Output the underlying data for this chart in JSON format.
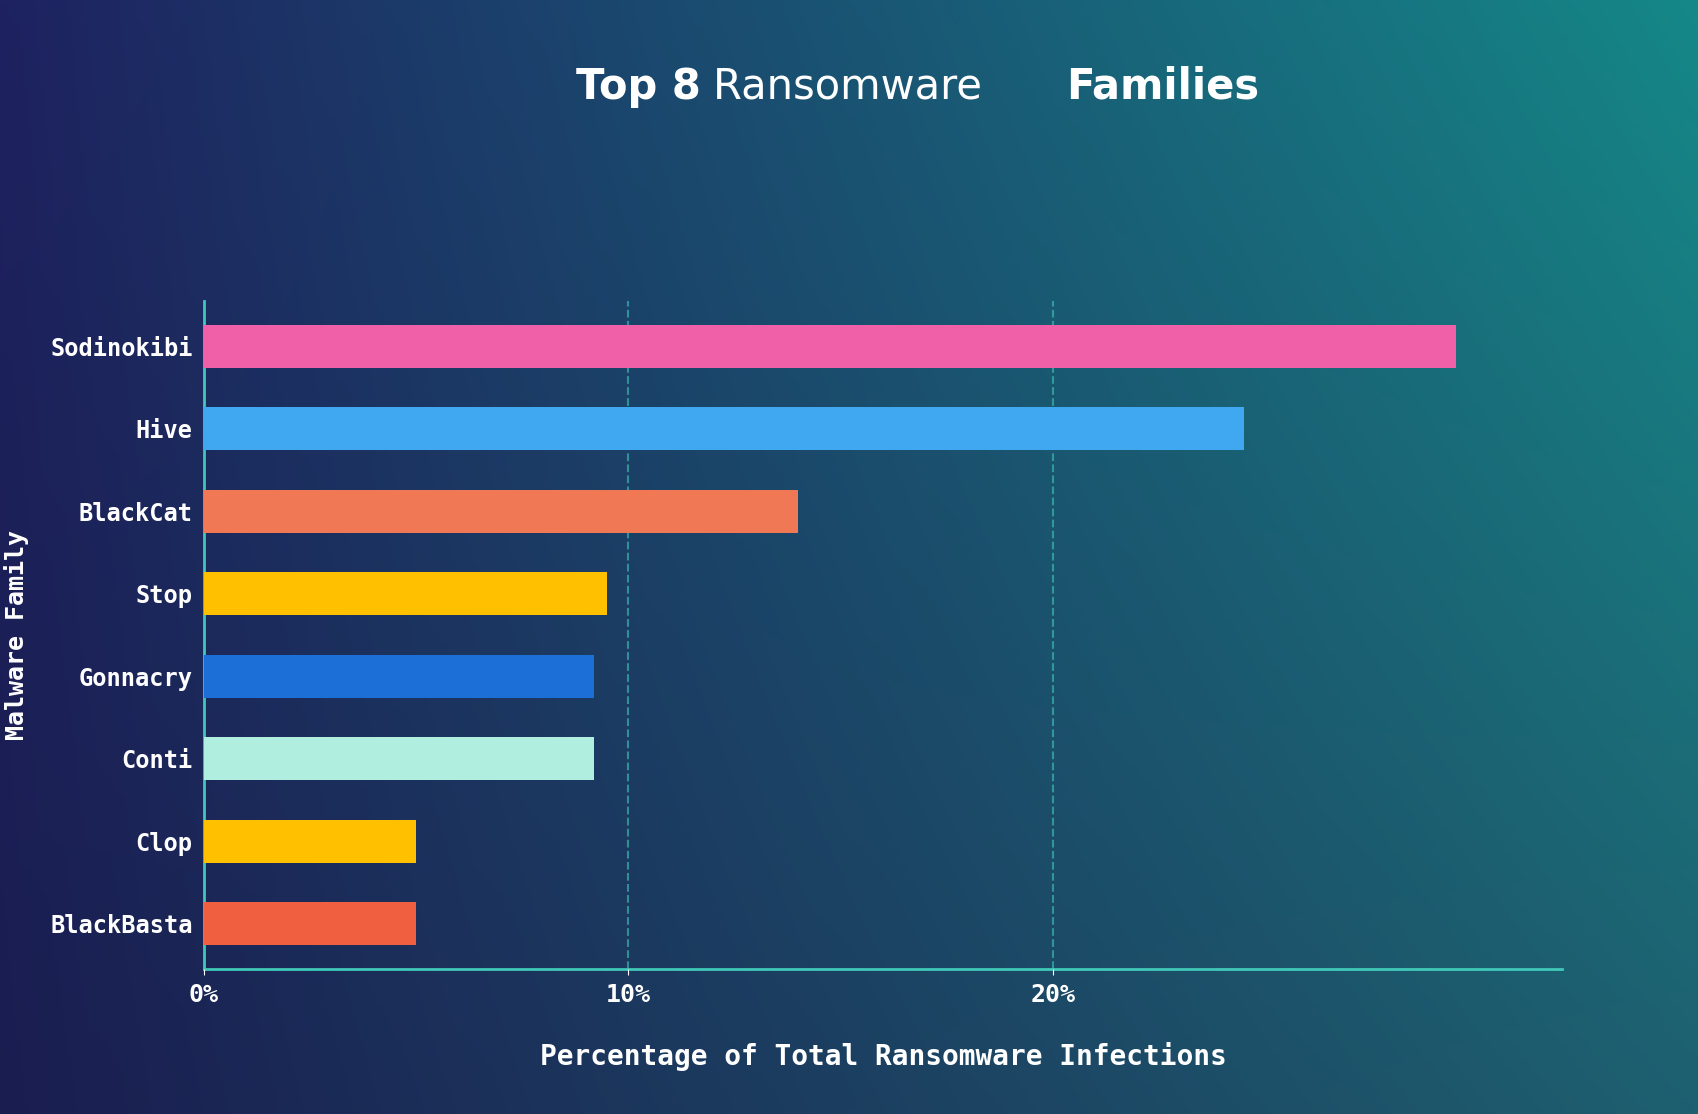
{
  "title_part1": "Top 8",
  "title_part2": "Ransomware  ",
  "title_part3": "Families",
  "categories": [
    "Sodinokibi",
    "Hive",
    "BlackCat",
    "Stop",
    "Gonnacry",
    "Conti",
    "Clop",
    "BlackBasta"
  ],
  "values": [
    29.5,
    24.5,
    14.0,
    9.5,
    9.2,
    9.2,
    5.0,
    5.0
  ],
  "bar_colors": [
    "#F060A8",
    "#3FA8F0",
    "#F07855",
    "#FFC000",
    "#1B6FD6",
    "#B0EEE0",
    "#FFC000",
    "#F06040"
  ],
  "bar_height": 0.52,
  "xlabel": "Percentage of Total Ransomware Infections",
  "ylabel": "Malware Family",
  "xlim": [
    0,
    32
  ],
  "xticks": [
    0,
    10,
    20
  ],
  "xticklabels": [
    "0%",
    "10%",
    "20%"
  ],
  "grid_color": "#40C8B8",
  "grid_alpha": 0.6,
  "bg_color_topleft": "#1E2260",
  "bg_color_topright": "#158888",
  "bg_color_bottomleft": "#1A1D50",
  "bg_color_bottomright": "#1E6070",
  "label_color": "#FFFFFF",
  "title_color": "#FFFFFF",
  "axis_color": "#40C8B8",
  "tick_color": "#FFFFFF",
  "tick_fontsize": 18,
  "category_fontsize": 17,
  "xlabel_fontsize": 20,
  "ylabel_fontsize": 18,
  "title_fontsize": 30
}
